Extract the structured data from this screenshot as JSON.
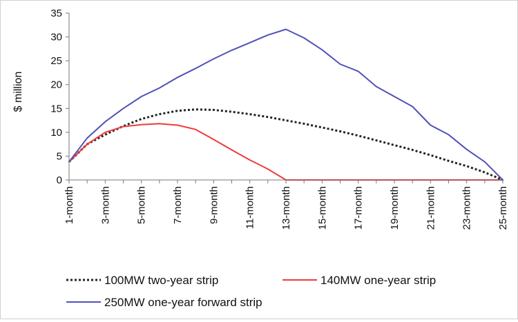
{
  "chart_data": {
    "type": "line",
    "ylabel": "$ million",
    "xlabel": "",
    "ylim": [
      0,
      35
    ],
    "yticks": [
      0,
      5,
      10,
      15,
      20,
      25,
      30,
      35
    ],
    "categories": [
      "1-month",
      "2-month",
      "3-month",
      "4-month",
      "5-month",
      "6-month",
      "7-month",
      "8-month",
      "9-month",
      "10-month",
      "11-month",
      "12-month",
      "13-month",
      "14-month",
      "15-month",
      "16-month",
      "17-month",
      "18-month",
      "19-month",
      "20-month",
      "21-month",
      "22-month",
      "23-month",
      "24-month",
      "25-month"
    ],
    "xtick_labels": [
      "1-month",
      "3-month",
      "5-month",
      "7-month",
      "9-month",
      "11-month",
      "13-month",
      "15-month",
      "17-month",
      "19-month",
      "21-month",
      "23-month",
      "25-month"
    ],
    "legend_position": "bottom",
    "grid": false,
    "series": [
      {
        "name": "100MW two-year strip",
        "color": "#222222",
        "style": "dotted",
        "values": [
          3.8,
          7.5,
          9.5,
          11.3,
          12.8,
          13.8,
          14.5,
          14.8,
          14.7,
          14.3,
          13.8,
          13.2,
          12.5,
          11.8,
          11.0,
          10.2,
          9.3,
          8.3,
          7.3,
          6.3,
          5.2,
          4.0,
          2.9,
          1.6,
          0
        ]
      },
      {
        "name": "140MW one-year strip",
        "color": "#ee3a3a",
        "style": "solid",
        "values": [
          3.8,
          7.5,
          10.0,
          11.2,
          11.6,
          11.8,
          11.5,
          10.6,
          8.5,
          6.3,
          4.2,
          2.3,
          0,
          0,
          0,
          0,
          0,
          0,
          0,
          0,
          0,
          0,
          0,
          0,
          0
        ]
      },
      {
        "name": "250MW one-year forward strip",
        "color": "#5050b8",
        "style": "solid",
        "values": [
          3.8,
          8.8,
          12.2,
          15.0,
          17.5,
          19.3,
          21.5,
          23.4,
          25.4,
          27.2,
          28.8,
          30.4,
          31.6,
          29.8,
          27.3,
          24.3,
          22.8,
          19.6,
          17.5,
          15.4,
          11.5,
          9.5,
          6.4,
          3.8,
          0
        ]
      }
    ]
  }
}
